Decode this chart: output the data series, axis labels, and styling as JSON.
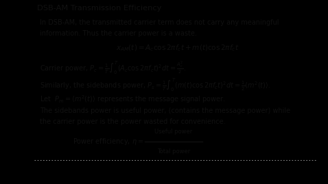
{
  "title": "DSB-AM Transmission Efficiency",
  "bg_color": "#ffffff",
  "outer_bg": "#000000",
  "text_color": "#111111",
  "line1": "In DSB-AM, the transmitted carrier term does not carry any meaningful",
  "line2": "information. Thus the carrier power is a waste.",
  "eq_main": "$x_{AM}(t) = A_c\\cos 2\\pi f_c t + m(t)\\cos 2\\pi f_c t$",
  "carrier_power": "Carrier power, $P_c = \\frac{1}{T}\\int_0^T(A_c\\cos 2\\pi f_c t)^2 dt = \\frac{A_c^2}{2}$.",
  "sidebands_power": "Similarly, the sidebands power, $P_s = \\frac{1}{T}\\int_0^T(m(t)\\cos 2\\pi f_c t)^2 dt = \\frac{1}{2}\\langle m^2(t)\\rangle$.",
  "let_pm": "Let  $P_m = \\langle m^2(t)\\rangle$ represents the message signal power.",
  "desc1": "The sidebands power is useful power, (contains the message power) while",
  "desc2": "the carrier power is the power wasted for convenience.",
  "eff_label": "Power efficiency, $\\eta = $",
  "eff_num": "Useful power",
  "eff_den": "Total power",
  "cam_color": "#4a4a4a",
  "dot_line_color": "#aaaaaa",
  "font_size": 7.0
}
